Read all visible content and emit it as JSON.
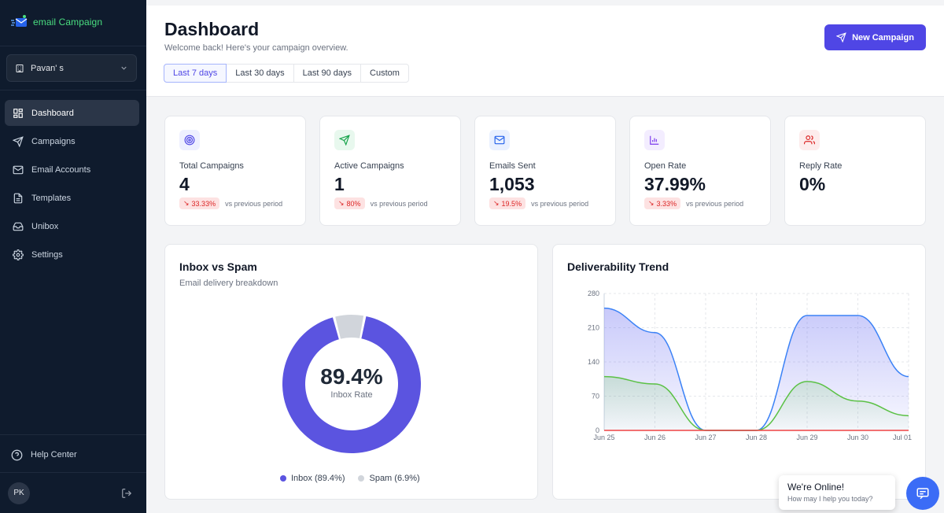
{
  "sidebar": {
    "logo_text": "email Campaign",
    "workspace": "Pavan' s",
    "items": [
      {
        "label": "Dashboard",
        "icon": "dashboard-icon"
      },
      {
        "label": "Campaigns",
        "icon": "send-icon"
      },
      {
        "label": "Email Accounts",
        "icon": "mail-icon"
      },
      {
        "label": "Templates",
        "icon": "file-icon"
      },
      {
        "label": "Unibox",
        "icon": "inbox-icon"
      },
      {
        "label": "Settings",
        "icon": "gear-icon"
      }
    ],
    "help": "Help Center",
    "avatar_initials": "PK"
  },
  "header": {
    "title": "Dashboard",
    "subtitle": "Welcome back! Here's your campaign overview.",
    "ranges": [
      "Last 7 days",
      "Last 30 days",
      "Last 90 days",
      "Custom"
    ],
    "active_range": "Last 7 days",
    "new_button": "New Campaign"
  },
  "stats": [
    {
      "label": "Total Campaigns",
      "value": "4",
      "change": "33.33%",
      "vs": "vs previous period",
      "icon": "target-icon",
      "bg": "#eef0ff",
      "fg": "#4f46e5"
    },
    {
      "label": "Active Campaigns",
      "value": "1",
      "change": "80%",
      "vs": "vs previous period",
      "icon": "send-icon",
      "bg": "#e8f8ee",
      "fg": "#16a34a"
    },
    {
      "label": "Emails Sent",
      "value": "1,053",
      "change": "19.5%",
      "vs": "vs previous period",
      "icon": "mail-icon",
      "bg": "#eaf1ff",
      "fg": "#2563eb"
    },
    {
      "label": "Open Rate",
      "value": "37.99%",
      "change": "3.33%",
      "vs": "vs previous period",
      "icon": "bar-chart-icon",
      "bg": "#f3edff",
      "fg": "#7c3aed"
    },
    {
      "label": "Reply Rate",
      "value": "0%",
      "change": "",
      "vs": "",
      "icon": "users-icon",
      "bg": "#fdecec",
      "fg": "#dc2626"
    }
  ],
  "inbox_panel": {
    "title": "Inbox vs Spam",
    "subtitle": "Email delivery breakdown",
    "center_value": "89.4%",
    "center_label": "Inbox Rate",
    "legend_inbox": "Inbox (89.4%)",
    "legend_spam": "Spam (6.9%)"
  },
  "trend_panel": {
    "title": "Deliverability Trend"
  },
  "chat": {
    "title": "We're Online!",
    "subtitle": "How may I help you today?"
  },
  "colors": {
    "accent": "#4f46e5",
    "sidebar": "#0f1b2d",
    "inbox": "#5b54e0",
    "spam": "#d1d5db",
    "blue_series": "#3b82f6",
    "green_series": "#5bc145",
    "red_series": "#ef4444"
  },
  "chart_data": [
    {
      "type": "pie",
      "categories": [
        "Inbox",
        "Spam"
      ],
      "values": [
        89.4,
        6.9
      ]
    },
    {
      "type": "area",
      "x": [
        "Jun 25",
        "Jun 26",
        "Jun 27",
        "Jun 28",
        "Jun 29",
        "Jun 30",
        "Jul 01"
      ],
      "series": [
        {
          "color": "#3b82f6",
          "values": [
            250,
            200,
            0,
            0,
            235,
            235,
            110
          ]
        },
        {
          "color": "#5bc145",
          "values": [
            110,
            95,
            0,
            0,
            100,
            60,
            30
          ]
        },
        {
          "color": "#ef4444",
          "values": [
            0,
            0,
            0,
            0,
            0,
            0,
            0
          ]
        }
      ],
      "yticks": [
        0,
        70,
        140,
        210,
        280
      ],
      "ylim": [
        0,
        280
      ],
      "grid": true
    }
  ]
}
